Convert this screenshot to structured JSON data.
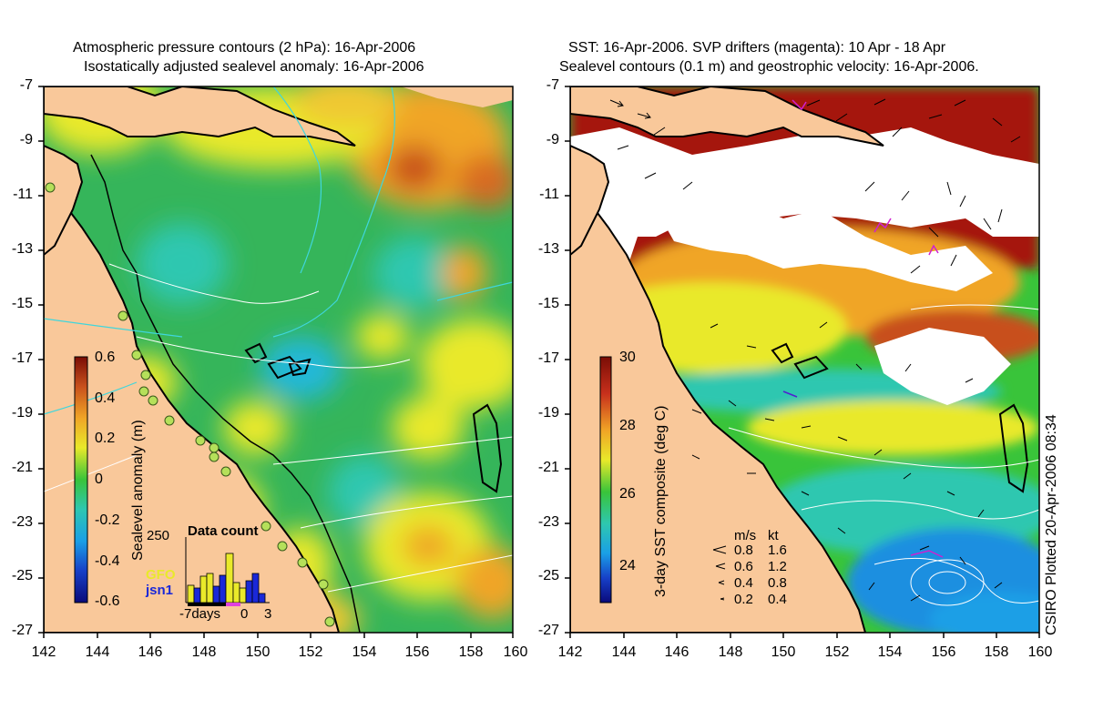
{
  "left_panel": {
    "title_line1": "Atmospheric pressure contours (2 hPa): 16-Apr-2006",
    "title_line2": "Isostatically adjusted sealevel anomaly: 16-Apr-2006",
    "colorbar_label": "Sealevel anomaly (m)",
    "colorbar_ticks": [
      "0.6",
      "0.4",
      "0.2",
      "0",
      "-0.2",
      "-0.4",
      "-0.6"
    ],
    "inset": {
      "title": "Data count",
      "ymax_label": "250",
      "series": [
        "GFO",
        "jsn1"
      ],
      "xlabel_left": "-7days",
      "xlabel_mid": "0",
      "xlabel_right": "3"
    }
  },
  "right_panel": {
    "title_line1": "SST: 16-Apr-2006. SVP drifters (magenta): 10 Apr - 18 Apr",
    "title_line2": "Sealevel contours (0.1 m) and geostrophic velocity: 16-Apr-2006.",
    "colorbar_label": "3-day SST composite (deg C)",
    "colorbar_ticks": [
      "30",
      "28",
      "26",
      "24"
    ],
    "legend": {
      "header_ms": "m/s",
      "header_kt": "kt",
      "rows": [
        {
          "ms": "0.8",
          "kt": "1.6"
        },
        {
          "ms": "0.6",
          "kt": "1.2"
        },
        {
          "ms": "0.4",
          "kt": "0.8"
        },
        {
          "ms": "0.2",
          "kt": "0.4"
        }
      ]
    },
    "credit": "CSIRO Plotted 20-Apr-2006 08:34"
  },
  "axes": {
    "y_ticks": [
      "-7",
      "-9",
      "-11",
      "-13",
      "-15",
      "-17",
      "-19",
      "-21",
      "-23",
      "-25",
      "-27"
    ],
    "x_ticks": [
      "142",
      "144",
      "146",
      "148",
      "150",
      "152",
      "154",
      "156",
      "158",
      "160"
    ]
  },
  "colors": {
    "land": "#f9c89a",
    "sea_green": "#35b55a",
    "sea_teal": "#2ec7b0",
    "sea_yellow": "#e9e92a",
    "sea_orange": "#f0a526",
    "sea_red": "#c8501c",
    "sst_red": "#a5160a",
    "sst_blue": "#1c8fe0",
    "cloud": "#ffffff",
    "coast": "#000000",
    "contour_cyan": "#3fd6dc",
    "drifter": "#d020d0"
  }
}
